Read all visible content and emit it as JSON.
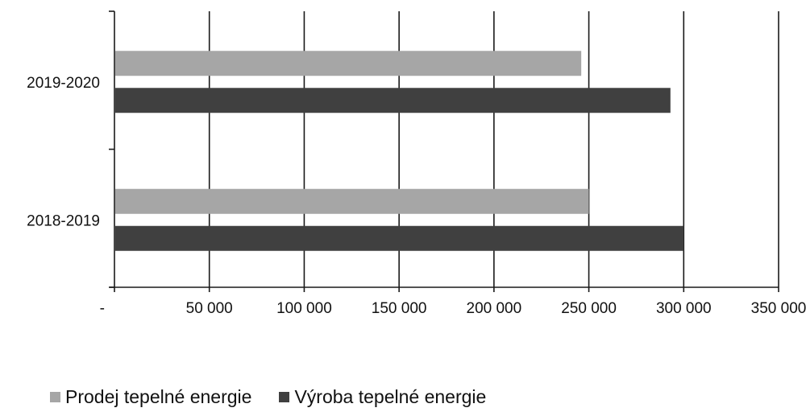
{
  "chart_data": {
    "type": "bar",
    "orientation": "horizontal",
    "categories": [
      "2019-2020",
      "2018-2019"
    ],
    "series": [
      {
        "name": "Prodej tepelné energie",
        "values": [
          246000,
          250000
        ],
        "color": "#a6a6a6"
      },
      {
        "name": "Výroba tepelné energie",
        "values": [
          293000,
          300000
        ],
        "color": "#404040"
      }
    ],
    "x_ticks": [
      0,
      50000,
      100000,
      150000,
      200000,
      250000,
      300000,
      350000
    ],
    "x_tick_labels": [
      "-",
      "50 000",
      "100 000",
      "150 000",
      "200 000",
      "250 000",
      "300 000",
      "350 000"
    ],
    "xlim": [
      0,
      350000
    ],
    "grid": "vertical",
    "legend_position": "bottom"
  }
}
